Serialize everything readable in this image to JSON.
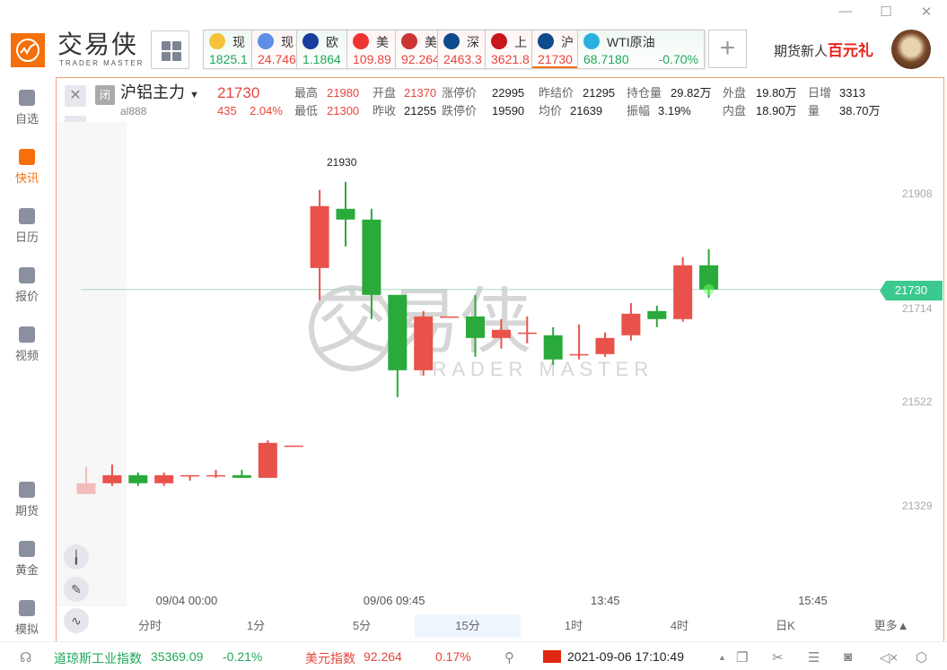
{
  "app": {
    "brand": "交易侠",
    "brand_sub": "TRADER MASTER",
    "promo": "期货新人",
    "promo_strong": "百元礼"
  },
  "window": {
    "minimize": "—",
    "maximize": "☐",
    "close": "✕"
  },
  "tickers": [
    {
      "name": "现",
      "price": "1825.1",
      "trend": "green",
      "icon": "gold-icon",
      "color": "#f6c23a"
    },
    {
      "name": "现",
      "price": "24.746",
      "trend": "red",
      "icon": "silver-icon",
      "color": "#5d8fe8"
    },
    {
      "name": "欧",
      "price": "1.1864",
      "trend": "green",
      "icon": "eu-us-flag-icon",
      "color": "#1a3c9c"
    },
    {
      "name": "美",
      "price": "109.89",
      "trend": "red",
      "icon": "us-jp-flag-icon",
      "color": "#e33"
    },
    {
      "name": "美",
      "price": "92.264",
      "trend": "red",
      "icon": "us-flag-icon",
      "color": "#c33"
    },
    {
      "name": "深",
      "price": "2463.3",
      "trend": "red",
      "icon": "szse-icon",
      "color": "#0e4a8c"
    },
    {
      "name": "上",
      "price": "3621.8",
      "trend": "red",
      "icon": "sse-icon",
      "color": "#c8161d"
    },
    {
      "name": "沪",
      "price": "21730",
      "trend": "red",
      "icon": "shfe-icon",
      "color": "#0e4a8c"
    },
    {
      "name": "WTI原油",
      "price": "68.7180",
      "change": "-0.70%",
      "trend": "green",
      "icon": "oil-icon",
      "color": "#2ab0e0"
    }
  ],
  "sidebar": [
    {
      "label": "自选",
      "icon": "bookmark-icon",
      "active": false
    },
    {
      "label": "快讯",
      "icon": "news-list-icon",
      "active": true
    },
    {
      "label": "日历",
      "icon": "calendar-icon",
      "active": false
    },
    {
      "label": "报价",
      "icon": "quote-chart-icon",
      "active": false
    },
    {
      "label": "视频",
      "icon": "video-play-icon",
      "active": false
    },
    {
      "label": "期货",
      "icon": "futures-icon",
      "active": false
    },
    {
      "label": "黄金",
      "icon": "sge-gold-icon",
      "active": false
    },
    {
      "label": "模拟",
      "icon": "wallet-icon",
      "active": false
    }
  ],
  "instrument": {
    "status": "闭",
    "name": "沪铝主力",
    "code": "al888",
    "price": "21730",
    "change": "435",
    "change_pct": "2.04%"
  },
  "stats": [
    {
      "label": "最高",
      "value": "21980",
      "color": "red"
    },
    {
      "label": "开盘",
      "value": "21370",
      "color": "red"
    },
    {
      "label": "涨停价",
      "value": "22995",
      "color": "dark"
    },
    {
      "label": "昨结价",
      "value": "21295",
      "color": "dark"
    },
    {
      "label": "持仓量",
      "value": "29.82万",
      "color": "dark"
    },
    {
      "label": "外盘",
      "value": "19.80万",
      "color": "dark"
    },
    {
      "label": "日增",
      "value": "3313",
      "color": "dark"
    },
    {
      "label": "最低",
      "value": "21300",
      "color": "red"
    },
    {
      "label": "昨收",
      "value": "21255",
      "color": "dark"
    },
    {
      "label": "跌停价",
      "value": "19590",
      "color": "dark"
    },
    {
      "label": "均价",
      "value": "21639",
      "color": "dark"
    },
    {
      "label": "振幅",
      "value": "3.19%",
      "color": "dark"
    },
    {
      "label": "内盘",
      "value": "18.90万",
      "color": "dark"
    },
    {
      "label": "量",
      "value": "38.70万",
      "color": "dark"
    }
  ],
  "chart_data": {
    "type": "candlestick",
    "up_color": "#e8524a",
    "down_color": "#2aaa3a",
    "ohlc": [
      [
        21350,
        21400,
        21350,
        21370
      ],
      [
        21370,
        21405,
        21365,
        21385
      ],
      [
        21385,
        21390,
        21365,
        21370
      ],
      [
        21370,
        21390,
        21365,
        21385
      ],
      [
        21385,
        21385,
        21375,
        21385
      ],
      [
        21385,
        21395,
        21380,
        21385
      ],
      [
        21385,
        21395,
        21380,
        21380
      ],
      [
        21380,
        21450,
        21380,
        21445
      ],
      [
        21440,
        21440,
        21440,
        21440
      ],
      [
        21770,
        21915,
        21710,
        21885
      ],
      [
        21880,
        21930,
        21810,
        21860
      ],
      [
        21860,
        21880,
        21675,
        21720
      ],
      [
        21720,
        21720,
        21530,
        21580
      ],
      [
        21580,
        21690,
        21570,
        21680
      ],
      [
        21680,
        21680,
        21680,
        21680
      ],
      [
        21680,
        21720,
        21605,
        21640
      ],
      [
        21640,
        21675,
        21620,
        21655
      ],
      [
        21650,
        21680,
        21630,
        21650
      ],
      [
        21645,
        21660,
        21590,
        21600
      ],
      [
        21610,
        21665,
        21600,
        21610
      ],
      [
        21610,
        21650,
        21605,
        21640
      ],
      [
        21645,
        21705,
        21635,
        21685
      ],
      [
        21690,
        21700,
        21660,
        21675
      ],
      [
        21675,
        21790,
        21670,
        21775
      ],
      [
        21775,
        21805,
        21715,
        21730
      ]
    ],
    "y_ticks": [
      "21908",
      "21714",
      "21522",
      "21329"
    ],
    "x_ticks": [
      {
        "index": 4,
        "label": "09/04 00:00"
      },
      {
        "index": 12,
        "label": "09/06 09:45"
      },
      {
        "index": 20,
        "label": "13:45"
      },
      {
        "index": 28,
        "label": "15:45"
      }
    ],
    "high_label": "21930",
    "last_price": "21730",
    "watermark": "交易侠 TRADER MASTER"
  },
  "timeframes": [
    {
      "label": "分时"
    },
    {
      "label": "1分"
    },
    {
      "label": "5分"
    },
    {
      "label": "15分",
      "active": true
    },
    {
      "label": "1时"
    },
    {
      "label": "4时"
    },
    {
      "label": "日K"
    },
    {
      "label": "更多▲"
    }
  ],
  "status": {
    "dow_name": "道琼斯工业指数",
    "dow_value": "35369.09",
    "dow_change": "-0.21%",
    "usd_name": "美元指数",
    "usd_value": "92.264",
    "usd_change": "0.17%",
    "datetime": "2021-09-06 17:10:49"
  }
}
